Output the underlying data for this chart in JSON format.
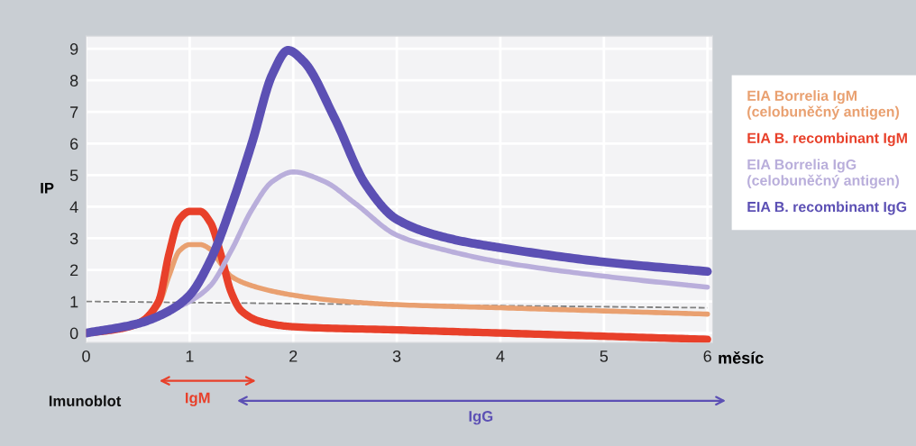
{
  "chart_data": {
    "type": "line",
    "xlabel": "měsíc",
    "ylabel": "IP",
    "xlim": [
      0,
      6.05
    ],
    "ylim": [
      -0.3,
      9.4
    ],
    "xticks": [
      0,
      1,
      2,
      3,
      4,
      5,
      6
    ],
    "yticks": [
      0,
      1,
      2,
      3,
      4,
      5,
      6,
      7,
      8,
      9
    ],
    "grid": true,
    "legend": "right",
    "marker": "none",
    "line_style": "solid",
    "series": [
      {
        "name": "EIA Borrelia IgM\n(celobuněčný antigen)",
        "color": "#e9a070",
        "x": [
          0,
          0.3,
          0.5,
          0.7,
          0.8,
          0.9,
          1.0,
          1.1,
          1.2,
          1.3,
          1.4,
          1.6,
          2.0,
          2.5,
          3.0,
          4.0,
          5.0,
          6.0
        ],
        "values": [
          0,
          0.12,
          0.35,
          0.9,
          1.8,
          2.6,
          2.8,
          2.8,
          2.65,
          2.2,
          1.8,
          1.5,
          1.2,
          1.0,
          0.9,
          0.8,
          0.7,
          0.6
        ]
      },
      {
        "name": "EIA B. recombinant IgM",
        "color": "#e8402a",
        "x": [
          0,
          0.3,
          0.5,
          0.7,
          0.8,
          0.9,
          1.0,
          1.1,
          1.2,
          1.3,
          1.4,
          1.5,
          1.7,
          2.0,
          3.0,
          4.0,
          5.0,
          6.0
        ],
        "values": [
          0,
          0.12,
          0.3,
          1.0,
          2.5,
          3.6,
          3.85,
          3.85,
          3.5,
          2.5,
          1.3,
          0.7,
          0.35,
          0.2,
          0.1,
          0.0,
          -0.1,
          -0.2
        ]
      },
      {
        "name": "EIA Borrelia IgG\n(celobuněčný antigen)",
        "color": "#b9aedb",
        "x": [
          0,
          0.5,
          0.8,
          1.0,
          1.2,
          1.4,
          1.6,
          1.8,
          2.0,
          2.3,
          2.6,
          3.0,
          3.5,
          4.0,
          5.0,
          6.0
        ],
        "values": [
          0,
          0.3,
          0.7,
          1.0,
          1.5,
          2.6,
          3.9,
          4.8,
          5.1,
          4.8,
          4.1,
          3.1,
          2.6,
          2.25,
          1.8,
          1.45
        ]
      },
      {
        "name": "EIA B. recombinant IgG",
        "color": "#5c50b4",
        "x": [
          0,
          0.5,
          0.8,
          1.0,
          1.2,
          1.4,
          1.6,
          1.8,
          1.95,
          2.1,
          2.4,
          2.7,
          3.0,
          3.5,
          4.0,
          5.0,
          6.0
        ],
        "values": [
          0,
          0.3,
          0.7,
          1.2,
          2.3,
          4.0,
          6.0,
          8.2,
          8.95,
          8.6,
          6.8,
          4.7,
          3.6,
          3.0,
          2.7,
          2.25,
          1.95
        ]
      },
      {
        "color": "#808080",
        "line_style": "dashed",
        "x": [
          0,
          6
        ],
        "values": [
          1.0,
          0.8
        ]
      }
    ],
    "annotations": [
      "Imunoblot",
      "IgM",
      "IgG"
    ]
  }
}
